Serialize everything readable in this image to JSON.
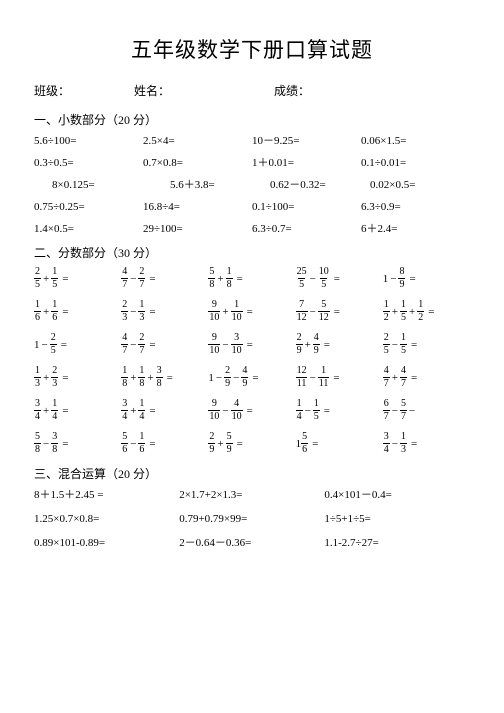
{
  "title": "五年级数学下册口算试题",
  "id_labels": {
    "class": "班级：",
    "name": "姓名：",
    "score": "成绩："
  },
  "sections": {
    "s1": "一、小数部分（20 分）",
    "s2": "二、分数部分（30 分）",
    "s3": "三、混合运算（20 分）"
  },
  "decimals": [
    [
      "5.6÷100=",
      "2.5×4=",
      "10－9.25=",
      "0.06×1.5="
    ],
    [
      "0.3÷0.5=",
      "0.7×0.8=",
      "1＋0.01=",
      "0.1÷0.01="
    ],
    [
      "8×0.125=",
      "5.6＋3.8=",
      "0.62－0.32=",
      "0.02×0.5="
    ],
    [
      "0.75÷0.25=",
      "16.8÷4=",
      "0.1÷100=",
      "6.3÷0.9="
    ],
    [
      "1.4×0.5=",
      "29÷100=",
      "6.3÷0.7=",
      "6＋2.4="
    ]
  ],
  "fractions": [
    [
      {
        "a": {
          "n": "2",
          "d": "5"
        },
        "op": "+",
        "b": {
          "n": "1",
          "d": "5"
        }
      },
      {
        "a": {
          "n": "4",
          "d": "7"
        },
        "op": "−",
        "b": {
          "n": "2",
          "d": "7"
        }
      },
      {
        "a": {
          "n": "5",
          "d": "8"
        },
        "op": "+",
        "b": {
          "n": "1",
          "d": "8"
        }
      },
      {
        "a": {
          "n": "25",
          "d": "5"
        },
        "op": "−",
        "b": {
          "n": "10",
          "d": "5"
        }
      },
      {
        "w": "1",
        "op": "−",
        "b": {
          "n": "8",
          "d": "9"
        }
      }
    ],
    [
      {
        "a": {
          "n": "1",
          "d": "6"
        },
        "op": "+",
        "b": {
          "n": "1",
          "d": "6"
        }
      },
      {
        "a": {
          "n": "2",
          "d": "3"
        },
        "op": "−",
        "b": {
          "n": "1",
          "d": "3"
        }
      },
      {
        "a": {
          "n": "9",
          "d": "10"
        },
        "op": "+",
        "b": {
          "n": "1",
          "d": "10"
        }
      },
      {
        "a": {
          "n": "7",
          "d": "12"
        },
        "op": "−",
        "b": {
          "n": "5",
          "d": "12"
        }
      },
      {
        "a": {
          "n": "1",
          "d": "2"
        },
        "op": "+",
        "b": {
          "n": "1",
          "d": "5"
        },
        "op2": "+",
        "c": {
          "n": "1",
          "d": "2"
        }
      }
    ],
    [
      {
        "w": "1",
        "op": "−",
        "b": {
          "n": "2",
          "d": "5"
        }
      },
      {
        "a": {
          "n": "4",
          "d": "7"
        },
        "op": "−",
        "b": {
          "n": "2",
          "d": "7"
        }
      },
      {
        "a": {
          "n": "9",
          "d": "10"
        },
        "op": "−",
        "b": {
          "n": "3",
          "d": "10"
        }
      },
      {
        "a": {
          "n": "2",
          "d": "9"
        },
        "op": "+",
        "b": {
          "n": "4",
          "d": "9"
        }
      },
      {
        "a": {
          "n": "2",
          "d": "5"
        },
        "op": "−",
        "b": {
          "n": "1",
          "d": "5"
        }
      }
    ],
    [
      {
        "a": {
          "n": "1",
          "d": "3"
        },
        "op": "+",
        "b": {
          "n": "2",
          "d": "3"
        }
      },
      {
        "a": {
          "n": "1",
          "d": "8"
        },
        "op": "+",
        "b": {
          "n": "1",
          "d": "8"
        },
        "op2": "+",
        "c": {
          "n": "3",
          "d": "8"
        }
      },
      {
        "w": "1",
        "op": "−",
        "b": {
          "n": "2",
          "d": "9"
        },
        "op2": "−",
        "c": {
          "n": "4",
          "d": "9"
        }
      },
      {
        "a": {
          "n": "12",
          "d": "11"
        },
        "op": "−",
        "b": {
          "n": "1",
          "d": "11"
        }
      },
      {
        "a": {
          "n": "4",
          "d": "7"
        },
        "op": "+",
        "b": {
          "n": "4",
          "d": "7"
        }
      }
    ],
    [
      {
        "a": {
          "n": "3",
          "d": "4"
        },
        "op": "+",
        "b": {
          "n": "1",
          "d": "4"
        }
      },
      {
        "a": {
          "n": "3",
          "d": "4"
        },
        "op": "+",
        "b": {
          "n": "1",
          "d": "4"
        }
      },
      {
        "a": {
          "n": "9",
          "d": "10"
        },
        "op": "−",
        "b": {
          "n": "4",
          "d": "10"
        }
      },
      {
        "a": {
          "n": "1",
          "d": "4"
        },
        "op": "−",
        "b": {
          "n": "1",
          "d": "5"
        }
      },
      {
        "a": {
          "n": "6",
          "d": "7"
        },
        "op": "−",
        "b": {
          "n": "5",
          "d": "7"
        },
        "trail": "−",
        "hand": true
      }
    ],
    [
      {
        "a": {
          "n": "5",
          "d": "8"
        },
        "op": "−",
        "b": {
          "n": "3",
          "d": "8"
        }
      },
      {
        "a": {
          "n": "5",
          "d": "6"
        },
        "op": "−",
        "b": {
          "n": "1",
          "d": "6"
        }
      },
      {
        "a": {
          "n": "2",
          "d": "9"
        },
        "op": "+",
        "b": {
          "n": "5",
          "d": "9"
        }
      },
      {
        "w": "1",
        "a": {
          "n": "5",
          "d": "6"
        },
        "mixed": true
      },
      {
        "a": {
          "n": "3",
          "d": "4"
        },
        "op": "−",
        "b": {
          "n": "1",
          "d": "3"
        },
        "hand": true
      }
    ]
  ],
  "mixed": [
    [
      "8＋1.5＋2.45 =",
      "2×1.7+2×1.3=",
      "0.4×101－0.4="
    ],
    [
      "1.25×0.7×0.8=",
      "0.79+0.79×99=",
      "1÷5+1÷5="
    ],
    [
      "0.89×101-0.89=",
      "2－0.64－0.36=",
      "1.1-2.7÷27="
    ]
  ],
  "style": {
    "page_bg": "#ffffff",
    "text_color": "#000000",
    "title_fontsize": 21,
    "body_fontsize": 11,
    "section_fontsize": 12,
    "fraction_fontsize": 10
  }
}
